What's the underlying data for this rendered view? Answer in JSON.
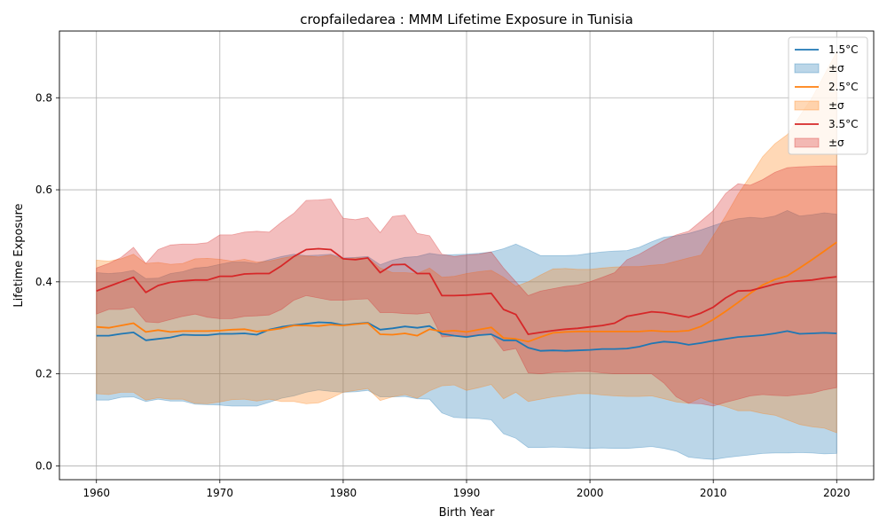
{
  "chart_data": {
    "type": "line",
    "title": "cropfailedarea : MMM Lifetime Exposure in Tunisia",
    "xlabel": "Birth Year",
    "ylabel": "Lifetime Exposure",
    "xlim": [
      1957,
      2023
    ],
    "ylim": [
      -0.03,
      0.945
    ],
    "xticks": [
      1960,
      1970,
      1980,
      1990,
      2000,
      2010,
      2020
    ],
    "xtick_labels": [
      "1960",
      "1970",
      "1980",
      "1990",
      "2000",
      "2010",
      "2020"
    ],
    "yticks": [
      0.0,
      0.2,
      0.4,
      0.6,
      0.8
    ],
    "ytick_labels": [
      "0.0",
      "0.2",
      "0.4",
      "0.6",
      "0.8"
    ],
    "grid": true,
    "legend_position": "top-right",
    "x": [
      1960,
      1961,
      1962,
      1963,
      1964,
      1965,
      1966,
      1967,
      1968,
      1969,
      1970,
      1971,
      1972,
      1973,
      1974,
      1975,
      1976,
      1977,
      1978,
      1979,
      1980,
      1981,
      1982,
      1983,
      1984,
      1985,
      1986,
      1987,
      1988,
      1989,
      1990,
      1991,
      1992,
      1993,
      1994,
      1995,
      1996,
      1997,
      1998,
      1999,
      2000,
      2001,
      2002,
      2003,
      2004,
      2005,
      2006,
      2007,
      2008,
      2009,
      2010,
      2011,
      2012,
      2013,
      2014,
      2015,
      2016,
      2017,
      2018,
      2019,
      2020
    ],
    "series": [
      {
        "name": "1.5°C",
        "band_label": "±σ",
        "color": "#1f77b4",
        "mean": [
          0.283,
          0.283,
          0.287,
          0.29,
          0.273,
          0.276,
          0.279,
          0.285,
          0.284,
          0.284,
          0.287,
          0.287,
          0.288,
          0.285,
          0.296,
          0.302,
          0.306,
          0.309,
          0.312,
          0.311,
          0.306,
          0.309,
          0.311,
          0.296,
          0.299,
          0.303,
          0.3,
          0.304,
          0.287,
          0.283,
          0.28,
          0.284,
          0.286,
          0.273,
          0.273,
          0.257,
          0.25,
          0.251,
          0.25,
          0.251,
          0.252,
          0.254,
          0.254,
          0.255,
          0.259,
          0.266,
          0.27,
          0.268,
          0.263,
          0.267,
          0.272,
          0.276,
          0.28,
          0.282,
          0.284,
          0.288,
          0.293,
          0.287,
          0.288,
          0.289,
          0.288
        ],
        "upper": [
          0.42,
          0.418,
          0.42,
          0.425,
          0.407,
          0.408,
          0.418,
          0.422,
          0.43,
          0.432,
          0.438,
          0.443,
          0.443,
          0.44,
          0.448,
          0.455,
          0.46,
          0.457,
          0.458,
          0.46,
          0.452,
          0.453,
          0.455,
          0.437,
          0.447,
          0.453,
          0.455,
          0.462,
          0.458,
          0.459,
          0.46,
          0.462,
          0.465,
          0.472,
          0.482,
          0.47,
          0.457,
          0.457,
          0.457,
          0.458,
          0.462,
          0.465,
          0.467,
          0.468,
          0.475,
          0.487,
          0.497,
          0.5,
          0.505,
          0.513,
          0.522,
          0.531,
          0.537,
          0.54,
          0.538,
          0.543,
          0.555,
          0.543,
          0.546,
          0.55,
          0.547
        ],
        "lower": [
          0.143,
          0.143,
          0.149,
          0.15,
          0.14,
          0.145,
          0.141,
          0.141,
          0.134,
          0.133,
          0.132,
          0.13,
          0.13,
          0.13,
          0.138,
          0.147,
          0.152,
          0.16,
          0.165,
          0.162,
          0.16,
          0.161,
          0.164,
          0.15,
          0.15,
          0.151,
          0.146,
          0.145,
          0.115,
          0.105,
          0.104,
          0.103,
          0.1,
          0.07,
          0.06,
          0.04,
          0.04,
          0.041,
          0.04,
          0.039,
          0.038,
          0.039,
          0.038,
          0.038,
          0.04,
          0.042,
          0.038,
          0.032,
          0.019,
          0.016,
          0.014,
          0.018,
          0.021,
          0.024,
          0.027,
          0.028,
          0.028,
          0.029,
          0.028,
          0.026,
          0.027
        ]
      },
      {
        "name": "2.5°C",
        "band_label": "±σ",
        "color": "#ff7f0e",
        "mean": [
          0.302,
          0.3,
          0.305,
          0.31,
          0.291,
          0.295,
          0.291,
          0.293,
          0.293,
          0.293,
          0.294,
          0.296,
          0.297,
          0.292,
          0.295,
          0.299,
          0.305,
          0.305,
          0.304,
          0.307,
          0.305,
          0.308,
          0.31,
          0.286,
          0.285,
          0.288,
          0.283,
          0.297,
          0.292,
          0.294,
          0.291,
          0.296,
          0.301,
          0.278,
          0.276,
          0.27,
          0.28,
          0.289,
          0.291,
          0.292,
          0.292,
          0.292,
          0.292,
          0.292,
          0.292,
          0.294,
          0.292,
          0.292,
          0.294,
          0.303,
          0.318,
          0.336,
          0.355,
          0.375,
          0.393,
          0.405,
          0.413,
          0.43,
          0.448,
          0.467,
          0.486
        ],
        "upper": [
          0.447,
          0.445,
          0.45,
          0.46,
          0.44,
          0.442,
          0.438,
          0.44,
          0.45,
          0.451,
          0.449,
          0.445,
          0.449,
          0.443,
          0.445,
          0.451,
          0.456,
          0.456,
          0.454,
          0.458,
          0.449,
          0.452,
          0.452,
          0.43,
          0.42,
          0.42,
          0.418,
          0.43,
          0.41,
          0.412,
          0.418,
          0.422,
          0.425,
          0.41,
          0.39,
          0.4,
          0.415,
          0.428,
          0.429,
          0.427,
          0.427,
          0.43,
          0.432,
          0.433,
          0.433,
          0.436,
          0.438,
          0.445,
          0.452,
          0.458,
          0.5,
          0.543,
          0.59,
          0.63,
          0.672,
          0.7,
          0.72,
          0.76,
          0.8,
          0.85,
          0.9
        ],
        "lower": [
          0.157,
          0.155,
          0.16,
          0.16,
          0.143,
          0.148,
          0.145,
          0.145,
          0.136,
          0.135,
          0.139,
          0.144,
          0.145,
          0.141,
          0.145,
          0.14,
          0.14,
          0.135,
          0.137,
          0.147,
          0.16,
          0.164,
          0.168,
          0.142,
          0.15,
          0.155,
          0.147,
          0.163,
          0.174,
          0.176,
          0.164,
          0.17,
          0.177,
          0.146,
          0.16,
          0.14,
          0.145,
          0.15,
          0.153,
          0.157,
          0.157,
          0.154,
          0.152,
          0.151,
          0.151,
          0.152,
          0.146,
          0.139,
          0.136,
          0.148,
          0.136,
          0.129,
          0.12,
          0.12,
          0.114,
          0.11,
          0.1,
          0.09,
          0.085,
          0.082,
          0.072
        ]
      },
      {
        "name": "3.5°C",
        "band_label": "±σ",
        "color": "#d62728",
        "mean": [
          0.38,
          0.39,
          0.4,
          0.41,
          0.377,
          0.392,
          0.399,
          0.402,
          0.404,
          0.404,
          0.412,
          0.412,
          0.417,
          0.418,
          0.418,
          0.435,
          0.455,
          0.47,
          0.472,
          0.47,
          0.45,
          0.448,
          0.452,
          0.42,
          0.437,
          0.438,
          0.418,
          0.418,
          0.37,
          0.37,
          0.371,
          0.373,
          0.375,
          0.34,
          0.329,
          0.286,
          0.29,
          0.294,
          0.297,
          0.299,
          0.302,
          0.305,
          0.31,
          0.325,
          0.33,
          0.335,
          0.333,
          0.328,
          0.323,
          0.332,
          0.345,
          0.365,
          0.38,
          0.381,
          0.388,
          0.395,
          0.4,
          0.402,
          0.404,
          0.408,
          0.411
        ],
        "upper": [
          0.43,
          0.44,
          0.453,
          0.475,
          0.44,
          0.47,
          0.48,
          0.482,
          0.482,
          0.485,
          0.502,
          0.502,
          0.508,
          0.51,
          0.508,
          0.53,
          0.549,
          0.577,
          0.578,
          0.58,
          0.538,
          0.535,
          0.54,
          0.507,
          0.542,
          0.545,
          0.505,
          0.5,
          0.46,
          0.455,
          0.458,
          0.46,
          0.465,
          0.43,
          0.4,
          0.37,
          0.38,
          0.385,
          0.39,
          0.393,
          0.4,
          0.41,
          0.42,
          0.448,
          0.46,
          0.475,
          0.49,
          0.502,
          0.51,
          0.532,
          0.555,
          0.592,
          0.613,
          0.61,
          0.622,
          0.638,
          0.648,
          0.65,
          0.651,
          0.652,
          0.652
        ],
        "lower": [
          0.33,
          0.34,
          0.34,
          0.345,
          0.313,
          0.311,
          0.318,
          0.325,
          0.33,
          0.323,
          0.32,
          0.32,
          0.325,
          0.326,
          0.328,
          0.34,
          0.36,
          0.37,
          0.365,
          0.36,
          0.36,
          0.362,
          0.363,
          0.333,
          0.333,
          0.331,
          0.33,
          0.333,
          0.28,
          0.282,
          0.282,
          0.285,
          0.285,
          0.25,
          0.255,
          0.202,
          0.2,
          0.203,
          0.204,
          0.205,
          0.205,
          0.202,
          0.2,
          0.2,
          0.2,
          0.2,
          0.18,
          0.15,
          0.136,
          0.135,
          0.13,
          0.138,
          0.145,
          0.152,
          0.155,
          0.153,
          0.152,
          0.155,
          0.158,
          0.165,
          0.17
        ]
      }
    ]
  }
}
